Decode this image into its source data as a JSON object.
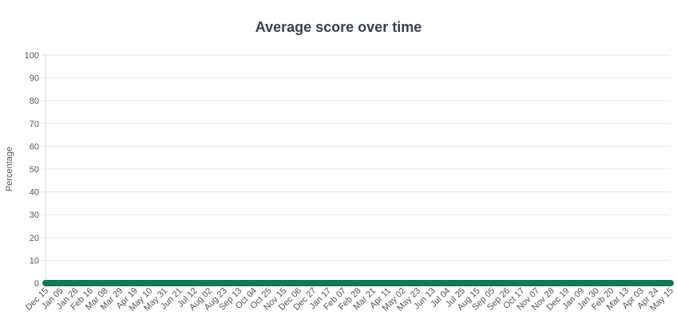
{
  "chart_data": {
    "type": "line",
    "title": "Average score over time",
    "xlabel": "",
    "ylabel": "Percentage",
    "ylim": [
      0,
      100
    ],
    "yticks": [
      0,
      10,
      20,
      30,
      40,
      50,
      60,
      70,
      80,
      90,
      100
    ],
    "grid": true,
    "legend": "none",
    "line_color": "#0f7a57",
    "categories": [
      "Dec 15",
      "Jan 05",
      "Jan 26",
      "Feb 16",
      "Mar 08",
      "Mar 29",
      "Apr 19",
      "May 10",
      "May 31",
      "Jun 21",
      "Jul 12",
      "Aug 02",
      "Aug 23",
      "Sep 13",
      "Oct 04",
      "Oct 25",
      "Nov 15",
      "Dec 06",
      "Dec 27",
      "Jan 17",
      "Feb 07",
      "Feb 28",
      "Mar 21",
      "Apr 11",
      "May 02",
      "May 23",
      "Jun 13",
      "Jul 04",
      "Jul 25",
      "Aug 15",
      "Sep 05",
      "Sep 26",
      "Oct 17",
      "Nov 07",
      "Nov 28",
      "Dec 19",
      "Jan 09",
      "Jan 30",
      "Feb 20",
      "Mar 13",
      "Apr 03",
      "Apr 24",
      "May 15"
    ],
    "series": [
      {
        "values": [
          0,
          0,
          0,
          0,
          0,
          0,
          0,
          0,
          0,
          0,
          0,
          0,
          0,
          0,
          0,
          0,
          0,
          0,
          0,
          0,
          0,
          0,
          0,
          0,
          0,
          0,
          0,
          0,
          0,
          0,
          0,
          0,
          0,
          0,
          0,
          0,
          0,
          0,
          0,
          0,
          0,
          0,
          0
        ]
      }
    ]
  }
}
